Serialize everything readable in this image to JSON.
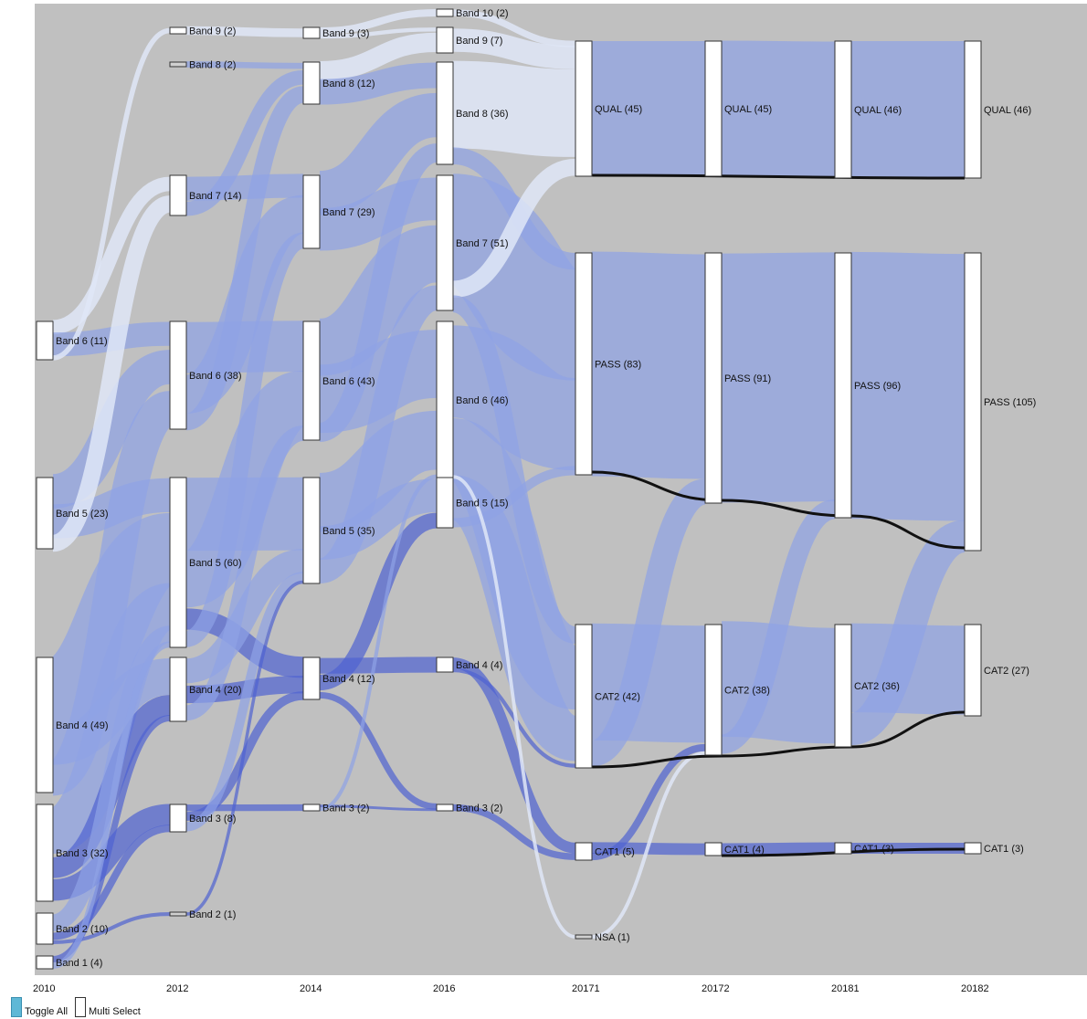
{
  "columns": [
    "2010",
    "2012",
    "2014",
    "2016",
    "20171",
    "20172",
    "20181",
    "20182"
  ],
  "controls": {
    "toggle_all_label": "Toggle All",
    "multi_select_label": "Multi Select"
  },
  "colors": {
    "background": "#c0c0c0",
    "link_light": "#dfe6f7",
    "link_mid": "#8fa3e6",
    "link_dark": "#4f63d2",
    "link_black": "#111111",
    "toggle_swatch": "#5fb8d6"
  },
  "nodes": [
    {
      "id": "n2010_b6",
      "col": 0,
      "label": "Band 6 (11)"
    },
    {
      "id": "n2010_b5",
      "col": 0,
      "label": "Band 5 (23)"
    },
    {
      "id": "n2010_b4",
      "col": 0,
      "label": "Band 4 (49)"
    },
    {
      "id": "n2010_b3",
      "col": 0,
      "label": "Band 3 (32)"
    },
    {
      "id": "n2010_b2",
      "col": 0,
      "label": "Band 2 (10)"
    },
    {
      "id": "n2010_b1",
      "col": 0,
      "label": "Band 1 (4)"
    },
    {
      "id": "n2012_b9",
      "col": 1,
      "label": "Band 9 (2)"
    },
    {
      "id": "n2012_b8",
      "col": 1,
      "label": "Band 8 (2)"
    },
    {
      "id": "n2012_b7",
      "col": 1,
      "label": "Band 7 (14)"
    },
    {
      "id": "n2012_b6",
      "col": 1,
      "label": "Band 6 (38)"
    },
    {
      "id": "n2012_b5",
      "col": 1,
      "label": "Band 5 (60)"
    },
    {
      "id": "n2012_b4",
      "col": 1,
      "label": "Band 4 (20)"
    },
    {
      "id": "n2012_b3",
      "col": 1,
      "label": "Band 3 (8)"
    },
    {
      "id": "n2012_b2",
      "col": 1,
      "label": "Band 2 (1)"
    },
    {
      "id": "n2014_b9",
      "col": 2,
      "label": "Band 9 (3)"
    },
    {
      "id": "n2014_b8",
      "col": 2,
      "label": "Band 8 (12)"
    },
    {
      "id": "n2014_b7",
      "col": 2,
      "label": "Band 7 (29)"
    },
    {
      "id": "n2014_b6",
      "col": 2,
      "label": "Band 6 (43)"
    },
    {
      "id": "n2014_b5",
      "col": 2,
      "label": "Band 5 (35)"
    },
    {
      "id": "n2014_b4",
      "col": 2,
      "label": "Band 4 (12)"
    },
    {
      "id": "n2014_b3",
      "col": 2,
      "label": "Band 3 (2)"
    },
    {
      "id": "n2016_b10",
      "col": 3,
      "label": "Band 10 (2)"
    },
    {
      "id": "n2016_b9",
      "col": 3,
      "label": "Band 9 (7)"
    },
    {
      "id": "n2016_b8",
      "col": 3,
      "label": "Band 8 (36)"
    },
    {
      "id": "n2016_b7",
      "col": 3,
      "label": "Band 7 (51)"
    },
    {
      "id": "n2016_b6",
      "col": 3,
      "label": "Band 6 (46)"
    },
    {
      "id": "n2016_b5",
      "col": 3,
      "label": "Band 5 (15)"
    },
    {
      "id": "n2016_b4",
      "col": 3,
      "label": "Band 4 (4)"
    },
    {
      "id": "n2016_b3",
      "col": 3,
      "label": "Band 3 (2)"
    },
    {
      "id": "n20171_qual",
      "col": 4,
      "label": "QUAL (45)"
    },
    {
      "id": "n20171_pass",
      "col": 4,
      "label": "PASS (83)"
    },
    {
      "id": "n20171_cat2",
      "col": 4,
      "label": "CAT2 (42)"
    },
    {
      "id": "n20171_cat1",
      "col": 4,
      "label": "CAT1 (5)"
    },
    {
      "id": "n20171_nsa",
      "col": 4,
      "label": "NSA (1)"
    },
    {
      "id": "n20172_qual",
      "col": 5,
      "label": "QUAL (45)"
    },
    {
      "id": "n20172_pass",
      "col": 5,
      "label": "PASS (91)"
    },
    {
      "id": "n20172_cat2",
      "col": 5,
      "label": "CAT2 (38)"
    },
    {
      "id": "n20172_cat1",
      "col": 5,
      "label": "CAT1 (4)"
    },
    {
      "id": "n20181_qual",
      "col": 6,
      "label": "QUAL (46)"
    },
    {
      "id": "n20181_pass",
      "col": 6,
      "label": "PASS (96)"
    },
    {
      "id": "n20181_cat2",
      "col": 6,
      "label": "CAT2 (36)"
    },
    {
      "id": "n20181_cat1",
      "col": 6,
      "label": "CAT1 (3)"
    },
    {
      "id": "n20182_qual",
      "col": 7,
      "label": "QUAL (46)"
    },
    {
      "id": "n20182_pass",
      "col": 7,
      "label": "PASS (105)"
    },
    {
      "id": "n20182_cat2",
      "col": 7,
      "label": "CAT2 (27)"
    },
    {
      "id": "n20182_cat1",
      "col": 7,
      "label": "CAT1 (3)"
    }
  ]
}
